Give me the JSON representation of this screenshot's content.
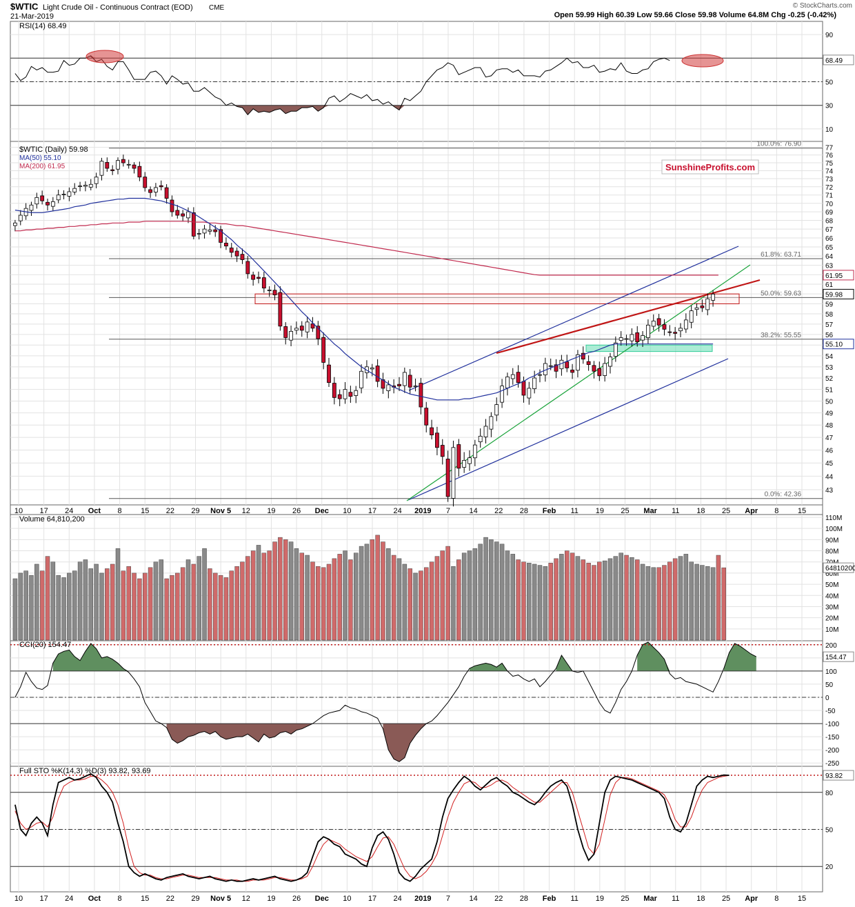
{
  "header": {
    "ticker": "$WTIC",
    "name": "Light Crude Oil - Continuous Contract (EOD)",
    "exchange": "CME",
    "date": "21-Mar-2019",
    "copyright": "© StockCharts.com",
    "ohlc": "Open 59.99  High 60.39  Low 59.66  Close 59.98  Volume 64.8M  Chg -0.25 (-0.42%)"
  },
  "watermark": "SunshineProfits.com",
  "colors": {
    "up": "#ffffff",
    "down": "#c8102e",
    "ma50": "#1f2f9c",
    "ma200": "#c0294d",
    "channel": "#1f2f9c",
    "green_line": "#19a33a",
    "red_line": "#c01515",
    "fill_green": "#5f8f5f",
    "fill_brown": "#8a5a56",
    "vol_up": "#8a8a8a",
    "vol_down": "#d06a6a"
  },
  "x_axis": {
    "labels": [
      "10",
      "17",
      "24",
      "Oct",
      "8",
      "15",
      "22",
      "29",
      "Nov 5",
      "12",
      "19",
      "26",
      "Dec",
      "10",
      "17",
      "24",
      "2019",
      "7",
      "14",
      "22",
      "28",
      "Feb",
      "11",
      "19",
      "25",
      "Mar",
      "11",
      "18",
      "25",
      "Apr",
      "8",
      "15"
    ],
    "bold": [
      "Oct",
      "Nov 5",
      "Dec",
      "2019",
      "Feb",
      "Mar",
      "Apr"
    ]
  },
  "chart_data": [
    {
      "panel": "rsi",
      "type": "line",
      "title": "RSI(14) 68.49",
      "last_label": "68.49",
      "ylim": [
        0,
        100
      ],
      "ticks": [
        "90",
        "70",
        "50",
        "30",
        "10"
      ],
      "levels": [
        70,
        50,
        30
      ],
      "values": [
        57,
        51,
        54,
        63,
        60,
        62,
        58,
        58,
        59,
        68,
        64,
        65,
        70,
        70,
        72,
        67,
        69,
        63,
        60,
        67,
        67,
        60,
        52,
        52,
        52,
        58,
        59,
        55,
        48,
        55,
        52,
        48,
        49,
        42,
        42,
        45,
        41,
        37,
        35,
        30,
        32,
        29,
        28,
        22,
        27,
        24,
        25,
        24,
        26,
        27,
        23,
        25,
        25,
        28,
        28,
        29,
        25,
        28,
        36,
        38,
        33,
        36,
        40,
        38,
        36,
        39,
        34,
        35,
        31,
        33,
        29,
        26,
        36,
        34,
        38,
        42,
        50,
        55,
        60,
        62,
        66,
        64,
        56,
        58,
        60,
        62,
        62,
        54,
        55,
        60,
        61,
        61,
        58,
        60,
        55,
        55,
        55,
        54,
        59,
        60,
        63,
        66,
        70,
        66,
        67,
        62,
        62,
        64,
        58,
        59,
        61,
        60,
        66,
        59,
        57,
        57,
        60,
        61,
        67,
        69,
        70,
        68
      ]
    },
    {
      "panel": "price",
      "type": "candlestick",
      "title": "$WTIC (Daily) 59.98",
      "ma50_label": "MA(50) 55.10",
      "ma200_label": "MA(200) 61.95",
      "last_close": "59.98",
      "ma50_last": "55.10",
      "ma200_last": "61.95",
      "ylim": [
        42,
        77.6
      ],
      "log_scale": true,
      "ticks": [
        "77",
        "76",
        "75",
        "74",
        "73",
        "72",
        "71",
        "70",
        "69",
        "68",
        "67",
        "66",
        "65",
        "64",
        "63",
        "62",
        "61",
        "60",
        "59",
        "58",
        "57",
        "56",
        "55",
        "54",
        "53",
        "52",
        "51",
        "50",
        "49",
        "48",
        "47",
        "46",
        "45",
        "44",
        "43"
      ],
      "fib_levels": [
        {
          "label": "100.0%: 76.90",
          "value": 76.9
        },
        {
          "label": "61.8%: 63.71",
          "value": 63.71
        },
        {
          "label": "50.0%: 59.63",
          "value": 59.63
        },
        {
          "label": "38.2%: 55.55",
          "value": 55.55
        },
        {
          "label": "0.0%: 42.36",
          "value": 42.36
        }
      ],
      "closes": [
        67.7,
        68.6,
        69.4,
        69.8,
        70.7,
        70.3,
        69.8,
        70.2,
        71.0,
        71.1,
        71.4,
        71.8,
        72.1,
        72.2,
        72.3,
        73.2,
        75.2,
        74.3,
        74.0,
        75.3,
        75.0,
        74.8,
        74.3,
        73.2,
        71.9,
        71.3,
        71.9,
        72.0,
        70.6,
        69.0,
        68.6,
        68.5,
        69.0,
        66.2,
        66.5,
        67.0,
        66.9,
        66.7,
        65.5,
        65.1,
        64.4,
        64.0,
        63.6,
        62.1,
        61.5,
        61.6,
        60.6,
        60.4,
        59.9,
        56.8,
        55.7,
        56.3,
        56.6,
        56.4,
        57.2,
        56.6,
        55.6,
        53.4,
        51.6,
        50.3,
        50.2,
        51.0,
        50.4,
        50.9,
        52.6,
        53.0,
        52.9,
        51.7,
        51.1,
        51.4,
        51.2,
        51.3,
        52.5,
        51.2,
        51.3,
        49.5,
        48.0,
        47.2,
        46.2,
        45.5,
        42.5,
        46.2,
        44.6,
        45.2,
        45.4,
        46.4,
        47.1,
        47.9,
        48.7,
        49.7,
        51.3,
        52.1,
        52.3,
        51.6,
        50.5,
        51.1,
        52.0,
        52.3,
        53.3,
        53.1,
        52.6,
        53.6,
        52.9,
        52.5,
        54.1,
        53.7,
        53.2,
        52.6,
        52.2,
        53.3,
        53.9,
        55.2,
        55.7,
        55.6,
        56.0,
        55.3,
        55.9,
        56.9,
        57.3,
        56.9,
        56.5,
        56.2,
        56.1,
        56.6,
        57.4,
        58.3,
        58.6,
        58.6,
        59.5,
        59.98
      ],
      "ma50": [
        69.2,
        69.1,
        69.0,
        68.9,
        68.9,
        68.9,
        69.0,
        69.1,
        69.2,
        69.3,
        69.4,
        69.6,
        69.7,
        69.8,
        70.0,
        70.1,
        70.2,
        70.3,
        70.4,
        70.5,
        70.5,
        70.6,
        70.6,
        70.6,
        70.6,
        70.5,
        70.4,
        70.3,
        70.1,
        69.9,
        69.7,
        69.4,
        69.1,
        68.8,
        68.4,
        68.0,
        67.6,
        67.2,
        66.8,
        66.3,
        65.8,
        65.2,
        64.7,
        64.2,
        63.6,
        63.0,
        62.4,
        61.8,
        61.2,
        60.6,
        60.0,
        59.4,
        58.8,
        58.2,
        57.7,
        57.1,
        56.6,
        56.1,
        55.6,
        55.1,
        54.7,
        54.2,
        53.8,
        53.4,
        53.0,
        52.7,
        52.4,
        52.1,
        51.8,
        51.5,
        51.2,
        51.0,
        50.8,
        50.6,
        50.5,
        50.4,
        50.3,
        50.2,
        50.1,
        50.1,
        50.1,
        50.1,
        50.1,
        50.2,
        50.2,
        50.3,
        50.4,
        50.5,
        50.6,
        50.7,
        50.9,
        51.1,
        51.3,
        51.5,
        51.7,
        52.0,
        52.2,
        52.5,
        52.7,
        52.9,
        53.1,
        53.3,
        53.5,
        53.7,
        53.9,
        54.1,
        54.3,
        54.4,
        54.6,
        54.8,
        55.0,
        55.1,
        55.1,
        55.1,
        55.1,
        55.1,
        55.1,
        55.1,
        55.1,
        55.1,
        55.1,
        55.1,
        55.1,
        55.1,
        55.1,
        55.1,
        55.1,
        55.1,
        55.1,
        55.1
      ],
      "ma200": [
        66.8,
        66.8,
        66.9,
        66.9,
        67.0,
        67.0,
        67.1,
        67.1,
        67.2,
        67.2,
        67.3,
        67.3,
        67.4,
        67.4,
        67.5,
        67.5,
        67.6,
        67.6,
        67.7,
        67.7,
        67.7,
        67.8,
        67.8,
        67.8,
        67.9,
        67.9,
        67.9,
        67.9,
        67.9,
        67.9,
        67.9,
        67.9,
        67.9,
        67.8,
        67.8,
        67.8,
        67.7,
        67.7,
        67.6,
        67.6,
        67.5,
        67.4,
        67.4,
        67.3,
        67.2,
        67.1,
        67.0,
        66.9,
        66.8,
        66.7,
        66.6,
        66.5,
        66.4,
        66.3,
        66.2,
        66.1,
        66.0,
        65.9,
        65.8,
        65.7,
        65.6,
        65.5,
        65.4,
        65.3,
        65.2,
        65.1,
        65.0,
        64.9,
        64.8,
        64.7,
        64.6,
        64.5,
        64.4,
        64.3,
        64.2,
        64.1,
        64.0,
        63.9,
        63.8,
        63.7,
        63.6,
        63.5,
        63.4,
        63.3,
        63.2,
        63.1,
        63.0,
        62.9,
        62.8,
        62.7,
        62.6,
        62.5,
        62.4,
        62.3,
        62.2,
        62.1,
        62.0,
        61.95,
        61.95,
        61.95,
        61.95,
        61.95,
        61.95,
        61.95,
        61.95,
        61.95,
        61.95,
        61.95,
        61.95,
        61.95,
        61.95,
        61.95,
        61.95,
        61.95,
        61.95,
        61.95,
        61.95,
        61.95,
        61.95,
        61.95,
        61.95,
        61.95,
        61.95,
        61.95,
        61.95,
        61.95,
        61.95,
        61.95,
        61.95,
        61.95,
        61.95
      ]
    },
    {
      "panel": "volume",
      "type": "bar",
      "title": "Volume 64,810,200",
      "last_label": "64810200",
      "ylim": [
        0,
        110
      ],
      "unit": "M",
      "ticks": [
        "110M",
        "100M",
        "90M",
        "80M",
        "70M",
        "60M",
        "50M",
        "40M",
        "30M",
        "20M",
        "10M"
      ],
      "values": [
        55,
        60,
        62,
        58,
        68,
        62,
        75,
        70,
        58,
        56,
        60,
        62,
        70,
        72,
        64,
        68,
        60,
        64,
        68,
        82,
        62,
        66,
        60,
        55,
        60,
        65,
        70,
        72,
        55,
        58,
        60,
        65,
        72,
        68,
        75,
        82,
        64,
        60,
        58,
        56,
        62,
        66,
        70,
        75,
        80,
        85,
        78,
        80,
        88,
        92,
        90,
        88,
        82,
        78,
        76,
        70,
        66,
        65,
        68,
        73,
        77,
        80,
        72,
        78,
        84,
        86,
        90,
        94,
        88,
        82,
        76,
        73,
        68,
        64,
        60,
        62,
        65,
        70,
        75,
        80,
        84,
        66,
        72,
        78,
        80,
        82,
        86,
        92,
        90,
        88,
        86,
        80,
        77,
        72,
        70,
        69,
        68,
        67,
        66,
        69,
        73,
        77,
        80,
        78,
        75,
        72,
        69,
        67,
        70,
        71,
        73,
        75,
        78,
        76,
        74,
        72,
        68,
        66,
        65,
        65,
        67,
        70,
        73,
        75,
        77,
        70,
        68,
        67,
        66,
        65,
        76,
        64.8
      ]
    },
    {
      "panel": "cci",
      "type": "line",
      "title": "CCI(20) 154.47",
      "last_label": "154.47",
      "ylim": [
        -260,
        210
      ],
      "ticks": [
        "200",
        "150",
        "100",
        "50",
        "0",
        "-50",
        "-100",
        "-150",
        "-200",
        "-250"
      ],
      "levels": [
        200,
        100,
        0,
        -100
      ],
      "values": [
        0,
        40,
        95,
        60,
        35,
        30,
        45,
        130,
        165,
        175,
        180,
        155,
        140,
        175,
        205,
        185,
        150,
        155,
        145,
        130,
        110,
        95,
        70,
        40,
        -20,
        -55,
        -90,
        -100,
        -115,
        -160,
        -175,
        -165,
        -150,
        -145,
        -135,
        -130,
        -140,
        -130,
        -150,
        -160,
        -155,
        -150,
        -150,
        -140,
        -155,
        -170,
        -140,
        -155,
        -150,
        -135,
        -130,
        -140,
        -125,
        -120,
        -110,
        -100,
        -85,
        -70,
        -60,
        -55,
        -50,
        -30,
        -40,
        -45,
        -55,
        -60,
        -70,
        -80,
        -120,
        -200,
        -235,
        -245,
        -230,
        -175,
        -145,
        -120,
        -100,
        -90,
        -70,
        -45,
        -20,
        10,
        40,
        80,
        110,
        120,
        125,
        130,
        125,
        115,
        130,
        100,
        80,
        85,
        70,
        60,
        70,
        40,
        60,
        85,
        110,
        160,
        130,
        100,
        95,
        100,
        60,
        20,
        -20,
        -50,
        -60,
        -20,
        30,
        60,
        100,
        160,
        200,
        210,
        190,
        170,
        145,
        90,
        70,
        75,
        60,
        55,
        50,
        40,
        30,
        20,
        60,
        110,
        170,
        205,
        195,
        180,
        165,
        154.47
      ]
    },
    {
      "panel": "sto",
      "type": "line",
      "title": "Full STO %K(14,3) %D(3) 93.82, 93.69",
      "last_label": "93.82",
      "ylim": [
        0,
        100
      ],
      "ticks": [
        "80",
        "50",
        "20"
      ],
      "levels": [
        80,
        50,
        20
      ],
      "k": [
        70,
        50,
        45,
        55,
        60,
        55,
        45,
        70,
        88,
        90,
        92,
        90,
        91,
        93,
        95,
        92,
        85,
        80,
        72,
        55,
        40,
        20,
        15,
        12,
        14,
        12,
        10,
        9,
        11,
        12,
        13,
        14,
        12,
        11,
        10,
        11,
        12,
        10,
        9,
        8,
        9,
        8,
        8,
        9,
        10,
        9,
        10,
        11,
        12,
        10,
        9,
        8,
        9,
        11,
        15,
        28,
        40,
        44,
        42,
        38,
        36,
        30,
        28,
        26,
        22,
        20,
        35,
        45,
        48,
        42,
        30,
        15,
        10,
        8,
        12,
        18,
        22,
        26,
        40,
        60,
        75,
        82,
        88,
        93,
        90,
        85,
        82,
        86,
        90,
        92,
        88,
        85,
        80,
        78,
        75,
        72,
        70,
        74,
        80,
        85,
        88,
        90,
        85,
        70,
        50,
        35,
        25,
        30,
        55,
        80,
        90,
        93,
        92,
        91,
        90,
        88,
        86,
        84,
        82,
        80,
        75,
        60,
        50,
        48,
        55,
        70,
        85,
        90,
        93,
        92,
        93,
        94,
        93.82
      ],
      "d": [
        65,
        55,
        50,
        52,
        55,
        56,
        52,
        60,
        75,
        85,
        88,
        90,
        90,
        91,
        93,
        93,
        90,
        86,
        80,
        70,
        55,
        35,
        20,
        15,
        13,
        13,
        11,
        10,
        10,
        11,
        12,
        13,
        13,
        12,
        11,
        11,
        11,
        11,
        10,
        9,
        9,
        9,
        8,
        8,
        9,
        9,
        9,
        10,
        11,
        11,
        10,
        9,
        9,
        10,
        12,
        20,
        30,
        38,
        42,
        40,
        38,
        34,
        31,
        28,
        26,
        24,
        28,
        36,
        43,
        44,
        38,
        28,
        18,
        12,
        10,
        12,
        16,
        22,
        30,
        45,
        60,
        72,
        80,
        87,
        89,
        88,
        84,
        84,
        86,
        89,
        90,
        88,
        84,
        81,
        78,
        75,
        72,
        72,
        76,
        80,
        84,
        88,
        88,
        80,
        65,
        50,
        35,
        30,
        38,
        58,
        78,
        88,
        92,
        92,
        91,
        89,
        87,
        85,
        83,
        81,
        78,
        70,
        58,
        52,
        52,
        60,
        72,
        82,
        88,
        90,
        92,
        93,
        93.69
      ]
    }
  ]
}
